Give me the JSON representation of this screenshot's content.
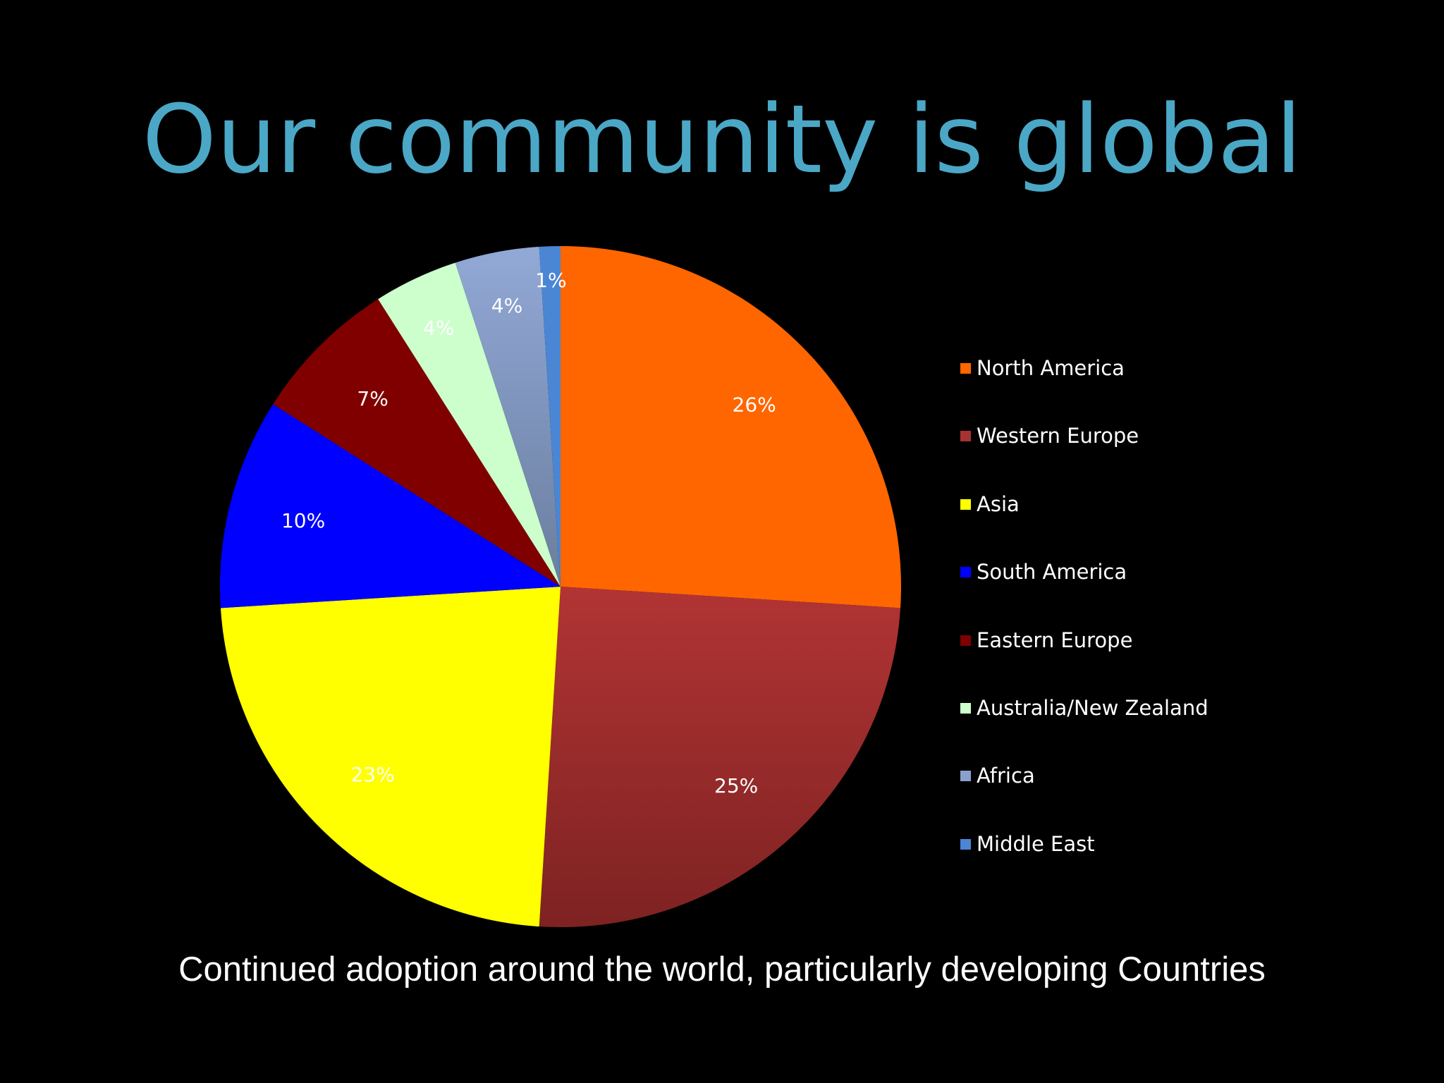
{
  "title": "Our community is global",
  "subtitle": "Continued adoption around the world, particularly developing Countries",
  "chart_data": {
    "type": "pie",
    "title": "",
    "start": "12 o'clock",
    "direction": "clockwise",
    "legend_position": "right",
    "data_labels": "percent",
    "slices": [
      {
        "name": "North America",
        "value": 26,
        "label": "26%",
        "color": "#ff6600"
      },
      {
        "name": "Western Europe",
        "value": 25,
        "label": "25%",
        "color": "#a83232"
      },
      {
        "name": "Asia",
        "value": 23,
        "label": "23%",
        "color": "#ffff00"
      },
      {
        "name": "South America",
        "value": 10,
        "label": "10%",
        "color": "#0000ff"
      },
      {
        "name": "Eastern Europe",
        "value": 7,
        "label": "7%",
        "color": "#800000"
      },
      {
        "name": "Australia/New Zealand",
        "value": 4,
        "label": "4%",
        "color": "#ccffcc"
      },
      {
        "name": "Africa",
        "value": 4,
        "label": "4%",
        "color": "#8aa0cc"
      },
      {
        "name": "Middle East",
        "value": 1,
        "label": "1%",
        "color": "#4a86d4"
      }
    ]
  }
}
